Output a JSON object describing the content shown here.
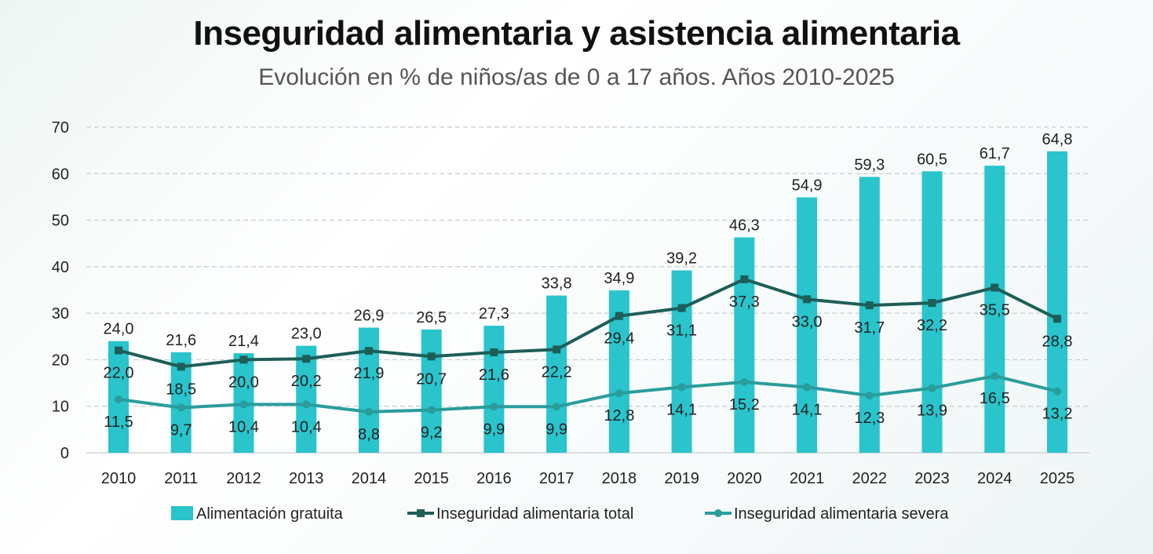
{
  "chart_data": {
    "type": "bar+line",
    "title": "Inseguridad alimentaria y asistencia alimentaria",
    "subtitle": "Evolución en % de niños/as de 0 a 17 años. Años 2010-2025",
    "categories": [
      "2010",
      "2011",
      "2012",
      "2013",
      "2014",
      "2015",
      "2016",
      "2017",
      "2018",
      "2019",
      "2020",
      "2021",
      "2022",
      "2023",
      "2024",
      "2025"
    ],
    "ylim": [
      0,
      70
    ],
    "yticks": [
      0,
      10,
      20,
      30,
      40,
      50,
      60,
      70
    ],
    "grid": true,
    "legend_position": "bottom",
    "series": [
      {
        "name": "Alimentación gratuita",
        "kind": "bar",
        "color": "#29c4cc",
        "values": [
          24.0,
          21.6,
          21.4,
          23.0,
          26.9,
          26.5,
          27.3,
          33.8,
          34.9,
          39.2,
          46.3,
          54.9,
          59.3,
          60.5,
          61.7,
          64.8
        ]
      },
      {
        "name": "Inseguridad alimentaria total",
        "kind": "line",
        "marker": "square",
        "color": "#1d5e58",
        "values": [
          22.0,
          18.5,
          20.0,
          20.2,
          21.9,
          20.7,
          21.6,
          22.2,
          29.4,
          31.1,
          37.3,
          33.0,
          31.7,
          32.2,
          35.5,
          28.8
        ]
      },
      {
        "name": "Inseguridad alimentaria severa",
        "kind": "line",
        "marker": "circle",
        "color": "#2a9c9c",
        "values": [
          11.5,
          9.7,
          10.4,
          10.4,
          8.8,
          9.2,
          9.9,
          9.9,
          12.8,
          14.1,
          15.2,
          14.1,
          12.3,
          13.9,
          16.5,
          13.2
        ]
      }
    ]
  }
}
